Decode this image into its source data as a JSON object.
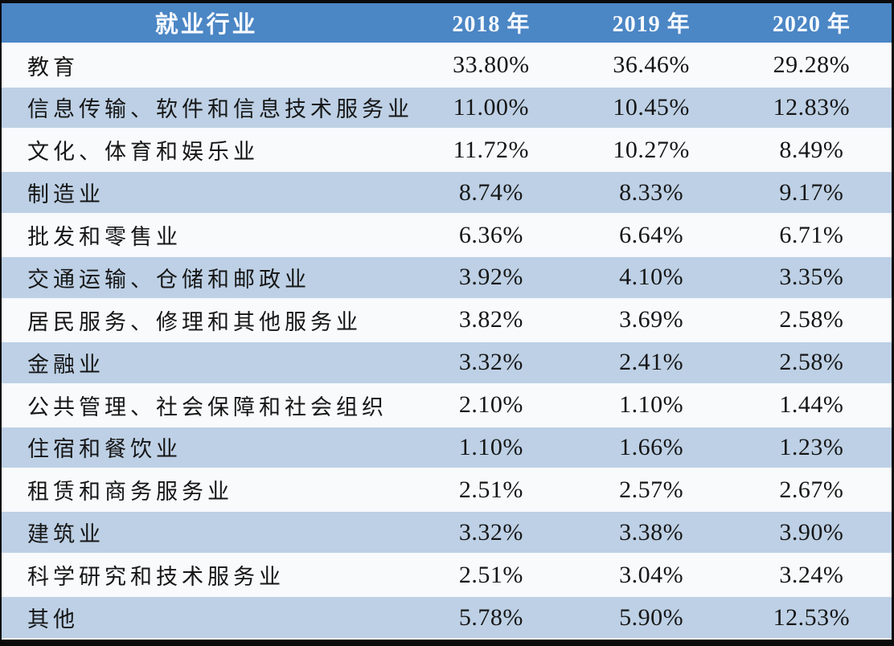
{
  "table": {
    "columns": [
      "就业行业",
      "2018 年",
      "2019 年",
      "2020 年"
    ],
    "rows": [
      [
        "教育",
        "33.80%",
        "36.46%",
        "29.28%"
      ],
      [
        "信息传输、软件和信息技术服务业",
        "11.00%",
        "10.45%",
        "12.83%"
      ],
      [
        "文化、体育和娱乐业",
        "11.72%",
        "10.27%",
        "8.49%"
      ],
      [
        "制造业",
        "8.74%",
        "8.33%",
        "9.17%"
      ],
      [
        "批发和零售业",
        "6.36%",
        "6.64%",
        "6.71%"
      ],
      [
        "交通运输、仓储和邮政业",
        "3.92%",
        "4.10%",
        "3.35%"
      ],
      [
        "居民服务、修理和其他服务业",
        "3.82%",
        "3.69%",
        "2.58%"
      ],
      [
        "金融业",
        "3.32%",
        "2.41%",
        "2.58%"
      ],
      [
        "公共管理、社会保障和社会组织",
        "2.10%",
        "1.10%",
        "1.44%"
      ],
      [
        "住宿和餐饮业",
        "1.10%",
        "1.66%",
        "1.23%"
      ],
      [
        "租赁和商务服务业",
        "2.51%",
        "2.57%",
        "2.67%"
      ],
      [
        "建筑业",
        "3.32%",
        "3.38%",
        "3.90%"
      ],
      [
        "科学研究和技术服务业",
        "2.51%",
        "3.04%",
        "3.24%"
      ],
      [
        "其他",
        "5.78%",
        "5.90%",
        "12.53%"
      ]
    ]
  },
  "chart_data": {
    "type": "table",
    "columns": [
      "就业行业",
      "2018 年",
      "2019 年",
      "2020 年"
    ],
    "categories": [
      "教育",
      "信息传输、软件和信息技术服务业",
      "文化、体育和娱乐业",
      "制造业",
      "批发和零售业",
      "交通运输、仓储和邮政业",
      "居民服务、修理和其他服务业",
      "金融业",
      "公共管理、社会保障和社会组织",
      "住宿和餐饮业",
      "租赁和商务服务业",
      "建筑业",
      "科学研究和技术服务业",
      "其他"
    ],
    "series": [
      {
        "name": "2018 年",
        "values": [
          33.8,
          11.0,
          11.72,
          8.74,
          6.36,
          3.92,
          3.82,
          3.32,
          2.1,
          1.1,
          2.51,
          3.32,
          2.51,
          5.78
        ]
      },
      {
        "name": "2019 年",
        "values": [
          36.46,
          10.45,
          10.27,
          8.33,
          6.64,
          4.1,
          3.69,
          2.41,
          1.1,
          1.66,
          2.57,
          3.38,
          3.04,
          5.9
        ]
      },
      {
        "name": "2020 年",
        "values": [
          29.28,
          12.83,
          8.49,
          9.17,
          6.71,
          3.35,
          2.58,
          2.58,
          1.44,
          1.23,
          2.67,
          3.9,
          3.24,
          12.53
        ]
      }
    ],
    "unit": "%",
    "layout": "banded rows, blue header, alternating white and light-blue row stripes"
  },
  "colors": {
    "frame": "#0b0b0b",
    "header_bg": "#4b86c5",
    "header_text": "#f8fbff",
    "band_row_bg": "#bdd0e5",
    "plain_row_bg": "#f9fafc",
    "body_text": "#161616",
    "row_separator": "#f7f9fc"
  }
}
